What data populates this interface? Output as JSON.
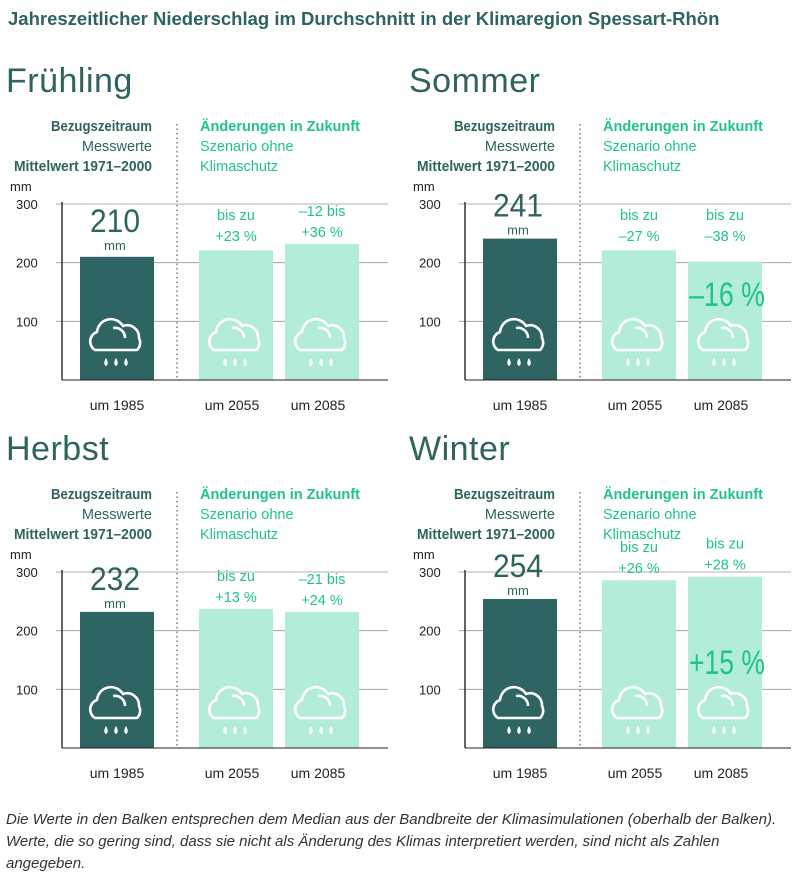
{
  "title": "Jahreszeitlicher Niederschlag im Durchschnitt in der Klimaregion Spessart-Rhön",
  "caption": "Die Werte in den Balken entsprechen dem Median aus der Bandbreite der Klimasimulationen (oberhalb der Balken). Werte, die so gering sind, dass sie nicht als Änderung des Klimas interpretiert werden, sind nicht als Zahlen angegeben.",
  "colors": {
    "reference_bar": "#2e6461",
    "future_bar": "#b3ecdb",
    "future_text": "#1fc489",
    "label_text": "#2f6360",
    "grid": "#999999"
  },
  "legend": {
    "reference_heading": "Bezugszeitraum",
    "reference_line2": "Messwerte",
    "reference_line3": "Mittelwert 1971–2000",
    "future_heading": "Änderungen in Zukunft",
    "future_line2": "Szenario ohne",
    "future_line3": "Klimaschutz"
  },
  "chart_data": [
    {
      "type": "bar",
      "title": "Frühling",
      "ylabel": "mm",
      "ylim": [
        0,
        300
      ],
      "yticks": [
        100,
        200,
        300
      ],
      "categories": [
        "um 1985",
        "um 2055",
        "um 2085"
      ],
      "values": [
        210,
        221,
        232
      ],
      "reference_label": "210",
      "reference_unit": "mm",
      "range_labels": [
        [
          "bis zu",
          "+23 %"
        ],
        [
          "–12 bis",
          "+36 %"
        ]
      ],
      "median_label": ""
    },
    {
      "type": "bar",
      "title": "Sommer",
      "ylabel": "mm",
      "ylim": [
        0,
        300
      ],
      "yticks": [
        100,
        200,
        300
      ],
      "categories": [
        "um 1985",
        "um 2055",
        "um 2085"
      ],
      "values": [
        241,
        221,
        202
      ],
      "reference_label": "241",
      "reference_unit": "mm",
      "range_labels": [
        [
          "bis zu",
          "–27 %"
        ],
        [
          "bis zu",
          "–38 %"
        ]
      ],
      "median_label": "–16 %"
    },
    {
      "type": "bar",
      "title": "Herbst",
      "ylabel": "mm",
      "ylim": [
        0,
        300
      ],
      "yticks": [
        100,
        200,
        300
      ],
      "categories": [
        "um 1985",
        "um 2055",
        "um 2085"
      ],
      "values": [
        232,
        237,
        232
      ],
      "reference_label": "232",
      "reference_unit": "mm",
      "range_labels": [
        [
          "bis zu",
          "+13 %"
        ],
        [
          "–21 bis",
          "+24 %"
        ]
      ],
      "median_label": ""
    },
    {
      "type": "bar",
      "title": "Winter",
      "ylabel": "mm",
      "ylim": [
        0,
        300
      ],
      "yticks": [
        100,
        200,
        300
      ],
      "categories": [
        "um 1985",
        "um 2055",
        "um 2085"
      ],
      "values": [
        254,
        286,
        292
      ],
      "reference_label": "254",
      "reference_unit": "mm",
      "range_labels": [
        [
          "bis zu",
          "+26 %"
        ],
        [
          "bis zu",
          "+28 %"
        ]
      ],
      "median_label": "+15 %"
    }
  ]
}
